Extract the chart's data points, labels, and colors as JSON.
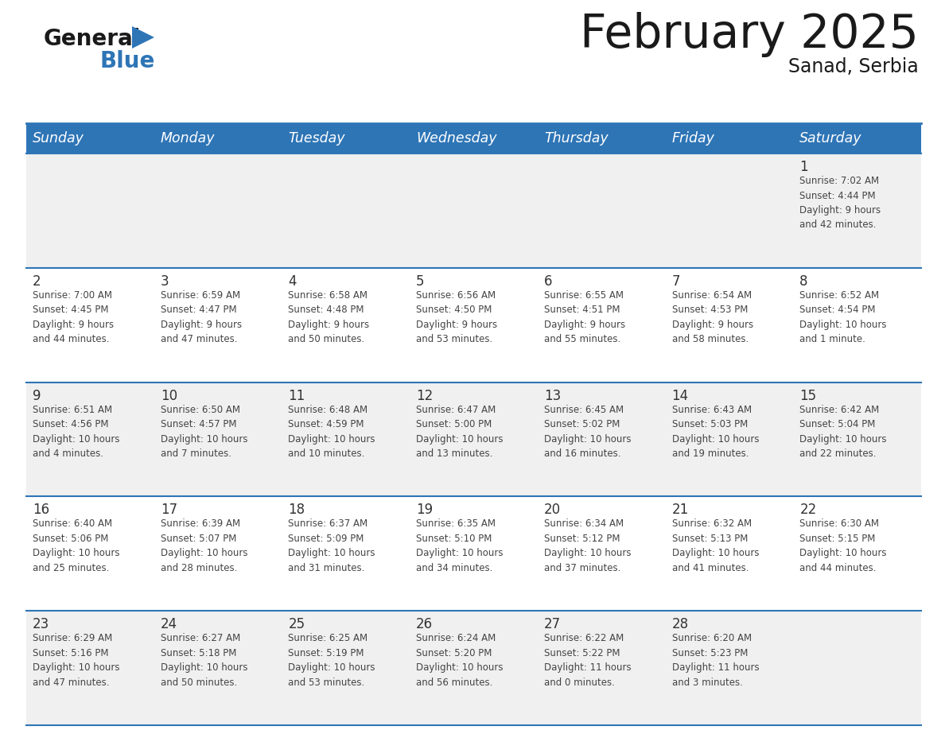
{
  "title": "February 2025",
  "subtitle": "Sanad, Serbia",
  "header_color": "#2E75B6",
  "header_text_color": "#FFFFFF",
  "days_of_week": [
    "Sunday",
    "Monday",
    "Tuesday",
    "Wednesday",
    "Thursday",
    "Friday",
    "Saturday"
  ],
  "background_color": "#FFFFFF",
  "cell_alt_color": "#F0F0F0",
  "border_color": "#2E75B6",
  "day_number_color": "#333333",
  "info_text_color": "#444444",
  "calendar_data": [
    [
      {
        "day": "",
        "info": ""
      },
      {
        "day": "",
        "info": ""
      },
      {
        "day": "",
        "info": ""
      },
      {
        "day": "",
        "info": ""
      },
      {
        "day": "",
        "info": ""
      },
      {
        "day": "",
        "info": ""
      },
      {
        "day": "1",
        "info": "Sunrise: 7:02 AM\nSunset: 4:44 PM\nDaylight: 9 hours\nand 42 minutes."
      }
    ],
    [
      {
        "day": "2",
        "info": "Sunrise: 7:00 AM\nSunset: 4:45 PM\nDaylight: 9 hours\nand 44 minutes."
      },
      {
        "day": "3",
        "info": "Sunrise: 6:59 AM\nSunset: 4:47 PM\nDaylight: 9 hours\nand 47 minutes."
      },
      {
        "day": "4",
        "info": "Sunrise: 6:58 AM\nSunset: 4:48 PM\nDaylight: 9 hours\nand 50 minutes."
      },
      {
        "day": "5",
        "info": "Sunrise: 6:56 AM\nSunset: 4:50 PM\nDaylight: 9 hours\nand 53 minutes."
      },
      {
        "day": "6",
        "info": "Sunrise: 6:55 AM\nSunset: 4:51 PM\nDaylight: 9 hours\nand 55 minutes."
      },
      {
        "day": "7",
        "info": "Sunrise: 6:54 AM\nSunset: 4:53 PM\nDaylight: 9 hours\nand 58 minutes."
      },
      {
        "day": "8",
        "info": "Sunrise: 6:52 AM\nSunset: 4:54 PM\nDaylight: 10 hours\nand 1 minute."
      }
    ],
    [
      {
        "day": "9",
        "info": "Sunrise: 6:51 AM\nSunset: 4:56 PM\nDaylight: 10 hours\nand 4 minutes."
      },
      {
        "day": "10",
        "info": "Sunrise: 6:50 AM\nSunset: 4:57 PM\nDaylight: 10 hours\nand 7 minutes."
      },
      {
        "day": "11",
        "info": "Sunrise: 6:48 AM\nSunset: 4:59 PM\nDaylight: 10 hours\nand 10 minutes."
      },
      {
        "day": "12",
        "info": "Sunrise: 6:47 AM\nSunset: 5:00 PM\nDaylight: 10 hours\nand 13 minutes."
      },
      {
        "day": "13",
        "info": "Sunrise: 6:45 AM\nSunset: 5:02 PM\nDaylight: 10 hours\nand 16 minutes."
      },
      {
        "day": "14",
        "info": "Sunrise: 6:43 AM\nSunset: 5:03 PM\nDaylight: 10 hours\nand 19 minutes."
      },
      {
        "day": "15",
        "info": "Sunrise: 6:42 AM\nSunset: 5:04 PM\nDaylight: 10 hours\nand 22 minutes."
      }
    ],
    [
      {
        "day": "16",
        "info": "Sunrise: 6:40 AM\nSunset: 5:06 PM\nDaylight: 10 hours\nand 25 minutes."
      },
      {
        "day": "17",
        "info": "Sunrise: 6:39 AM\nSunset: 5:07 PM\nDaylight: 10 hours\nand 28 minutes."
      },
      {
        "day": "18",
        "info": "Sunrise: 6:37 AM\nSunset: 5:09 PM\nDaylight: 10 hours\nand 31 minutes."
      },
      {
        "day": "19",
        "info": "Sunrise: 6:35 AM\nSunset: 5:10 PM\nDaylight: 10 hours\nand 34 minutes."
      },
      {
        "day": "20",
        "info": "Sunrise: 6:34 AM\nSunset: 5:12 PM\nDaylight: 10 hours\nand 37 minutes."
      },
      {
        "day": "21",
        "info": "Sunrise: 6:32 AM\nSunset: 5:13 PM\nDaylight: 10 hours\nand 41 minutes."
      },
      {
        "day": "22",
        "info": "Sunrise: 6:30 AM\nSunset: 5:15 PM\nDaylight: 10 hours\nand 44 minutes."
      }
    ],
    [
      {
        "day": "23",
        "info": "Sunrise: 6:29 AM\nSunset: 5:16 PM\nDaylight: 10 hours\nand 47 minutes."
      },
      {
        "day": "24",
        "info": "Sunrise: 6:27 AM\nSunset: 5:18 PM\nDaylight: 10 hours\nand 50 minutes."
      },
      {
        "day": "25",
        "info": "Sunrise: 6:25 AM\nSunset: 5:19 PM\nDaylight: 10 hours\nand 53 minutes."
      },
      {
        "day": "26",
        "info": "Sunrise: 6:24 AM\nSunset: 5:20 PM\nDaylight: 10 hours\nand 56 minutes."
      },
      {
        "day": "27",
        "info": "Sunrise: 6:22 AM\nSunset: 5:22 PM\nDaylight: 11 hours\nand 0 minutes."
      },
      {
        "day": "28",
        "info": "Sunrise: 6:20 AM\nSunset: 5:23 PM\nDaylight: 11 hours\nand 3 minutes."
      },
      {
        "day": "",
        "info": ""
      }
    ]
  ]
}
